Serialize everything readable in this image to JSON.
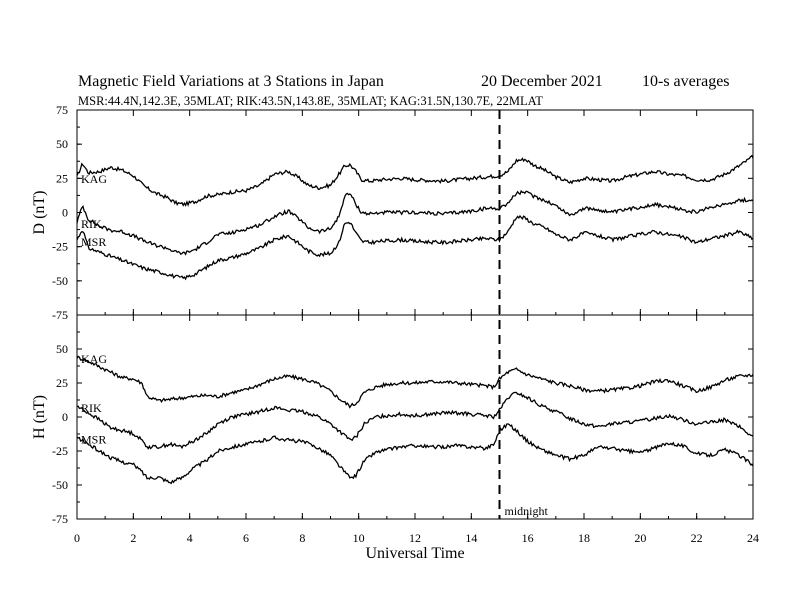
{
  "header": {
    "title": "Magnetic Field Variations at 3 Stations in Japan",
    "date": "20 December 2021",
    "averaging": "10-s averages",
    "stations_line": "MSR:44.4N,142.3E, 35MLAT;  RIK:43.5N,143.8E, 35MLAT;  KAG:31.5N,130.7E, 22MLAT"
  },
  "chart_data": [
    {
      "type": "line",
      "panel": "D",
      "ylabel": "D (nT)",
      "ylim": [
        -75,
        75
      ],
      "yticks": [
        -75,
        -50,
        -25,
        0,
        25,
        50,
        75
      ],
      "xlim": [
        0,
        24
      ],
      "series": [
        {
          "name": "KAG",
          "x": [
            0,
            0.2,
            0.4,
            0.8,
            1.2,
            1.6,
            2.0,
            2.4,
            2.8,
            3.2,
            3.5,
            3.8,
            4.2,
            4.6,
            5.0,
            5.5,
            6.0,
            6.5,
            7.0,
            7.5,
            7.9,
            8.2,
            8.6,
            9.0,
            9.3,
            9.5,
            9.7,
            9.9,
            10.1,
            10.4,
            10.8,
            11.5,
            12,
            13,
            14,
            14.5,
            15.0,
            15.3,
            15.6,
            15.9,
            16.2,
            16.6,
            17.0,
            17.5,
            18.0,
            18.5,
            19.0,
            19.5,
            20.0,
            20.5,
            21,
            21.5,
            22.0,
            22.5,
            23.0,
            23.5,
            24.0
          ],
          "y": [
            26,
            36,
            29,
            30,
            33,
            31,
            27,
            19,
            14,
            11,
            7,
            6,
            8,
            12,
            13,
            15,
            16,
            20,
            28,
            30,
            25,
            20,
            18,
            20,
            28,
            34,
            35,
            30,
            24,
            23,
            24,
            25,
            24,
            23,
            25,
            26,
            27,
            30,
            38,
            39,
            35,
            31,
            26,
            22,
            25,
            24,
            23,
            26,
            28,
            30,
            28,
            27,
            24,
            24,
            28,
            34,
            41
          ]
        },
        {
          "name": "RIK",
          "x": [
            0,
            0.2,
            0.4,
            0.8,
            1.2,
            1.6,
            2.0,
            2.4,
            2.8,
            3.2,
            3.5,
            3.8,
            4.2,
            4.6,
            5.0,
            5.5,
            6.0,
            6.5,
            7.0,
            7.5,
            7.9,
            8.2,
            8.6,
            9.0,
            9.3,
            9.5,
            9.7,
            9.9,
            10.1,
            10.4,
            10.8,
            11.5,
            12,
            13,
            14,
            14.5,
            15.0,
            15.3,
            15.6,
            15.9,
            16.2,
            16.6,
            17.0,
            17.5,
            18.0,
            18.5,
            19.0,
            19.5,
            20.0,
            20.5,
            21,
            21.5,
            22.0,
            22.5,
            23.0,
            23.5,
            24.0
          ],
          "y": [
            -7,
            5,
            -5,
            -10,
            -13,
            -14,
            -17,
            -21,
            -24,
            -26,
            -29,
            -30,
            -27,
            -22,
            -16,
            -15,
            -12,
            -9,
            -3,
            1,
            -5,
            -11,
            -14,
            -12,
            -3,
            12,
            14,
            6,
            0,
            -1,
            0,
            0,
            0,
            -1,
            1,
            3,
            3,
            7,
            14,
            15,
            12,
            9,
            5,
            -2,
            3,
            2,
            0,
            2,
            4,
            6,
            4,
            2,
            0,
            4,
            6,
            9,
            9
          ]
        },
        {
          "name": "MSR",
          "x": [
            0,
            0.2,
            0.4,
            0.8,
            1.2,
            1.6,
            2.0,
            2.4,
            2.8,
            3.2,
            3.5,
            3.8,
            4.2,
            4.6,
            5.0,
            5.5,
            6.0,
            6.5,
            7.0,
            7.5,
            7.9,
            8.2,
            8.6,
            9.0,
            9.3,
            9.5,
            9.7,
            9.9,
            10.1,
            10.4,
            10.8,
            11.5,
            12,
            13,
            14,
            14.5,
            15.0,
            15.3,
            15.6,
            15.9,
            16.2,
            16.6,
            17.0,
            17.5,
            18.0,
            18.5,
            19.0,
            19.5,
            20.0,
            20.5,
            21,
            21.5,
            22.0,
            22.5,
            23.0,
            23.5,
            24.0
          ],
          "y": [
            -20,
            -12,
            -26,
            -29,
            -32,
            -35,
            -38,
            -41,
            -43,
            -45,
            -47,
            -48,
            -45,
            -40,
            -35,
            -33,
            -30,
            -26,
            -20,
            -17,
            -23,
            -28,
            -31,
            -30,
            -22,
            -8,
            -7,
            -15,
            -21,
            -22,
            -21,
            -20,
            -21,
            -22,
            -20,
            -19,
            -20,
            -14,
            -3,
            -4,
            -8,
            -11,
            -16,
            -20,
            -15,
            -17,
            -20,
            -18,
            -16,
            -14,
            -16,
            -18,
            -22,
            -19,
            -17,
            -14,
            -19
          ]
        }
      ]
    },
    {
      "type": "line",
      "panel": "H",
      "ylabel": "H (nT)",
      "ylim": [
        -75,
        75
      ],
      "yticks": [
        -75,
        -50,
        -25,
        0,
        25,
        50
      ],
      "xlim": [
        0,
        24
      ],
      "xticks": [
        0,
        2,
        4,
        6,
        8,
        10,
        12,
        14,
        16,
        18,
        20,
        22,
        24
      ],
      "xlabel": "Universal Time",
      "series": [
        {
          "name": "KAG",
          "x": [
            0,
            0.4,
            0.8,
            1.2,
            1.6,
            2.0,
            2.3,
            2.5,
            2.9,
            3.3,
            3.7,
            4.1,
            4.6,
            5.0,
            5.5,
            6.0,
            6.5,
            7.0,
            7.5,
            8.0,
            8.5,
            9.0,
            9.4,
            9.7,
            9.9,
            10.2,
            10.6,
            11.0,
            11.5,
            12,
            12.5,
            13,
            13.5,
            14,
            14.5,
            14.8,
            15.0,
            15.3,
            15.6,
            16.0,
            16.5,
            17.0,
            17.5,
            18.0,
            18.5,
            19,
            19.5,
            20,
            20.5,
            21,
            21.5,
            22,
            22.5,
            23,
            23.5,
            24
          ],
          "y": [
            44,
            41,
            37,
            33,
            29,
            28,
            25,
            15,
            12,
            13,
            14,
            15,
            16,
            15,
            18,
            20,
            24,
            28,
            30,
            28,
            25,
            19,
            12,
            8,
            10,
            18,
            22,
            24,
            25,
            25,
            26,
            26,
            25,
            24,
            23,
            22,
            28,
            33,
            35,
            31,
            28,
            25,
            23,
            20,
            19,
            20,
            21,
            23,
            26,
            27,
            23,
            19,
            22,
            27,
            30,
            31
          ]
        },
        {
          "name": "RIK",
          "x": [
            0,
            0.4,
            0.8,
            1.2,
            1.6,
            2.0,
            2.3,
            2.5,
            2.9,
            3.3,
            3.7,
            4.1,
            4.6,
            5.0,
            5.5,
            6.0,
            6.5,
            7.0,
            7.5,
            8.0,
            8.5,
            9.0,
            9.4,
            9.7,
            9.9,
            10.2,
            10.6,
            11.0,
            11.5,
            12,
            12.5,
            13,
            13.5,
            14,
            14.5,
            14.8,
            15.0,
            15.3,
            15.6,
            16.0,
            16.5,
            17.0,
            17.5,
            18.0,
            18.5,
            19,
            19.5,
            20,
            20.5,
            21,
            21.5,
            22,
            22.5,
            23,
            23.5,
            24
          ],
          "y": [
            8,
            3,
            -2,
            -8,
            -10,
            -12,
            -17,
            -22,
            -22,
            -20,
            -22,
            -18,
            -12,
            -5,
            0,
            2,
            4,
            7,
            5,
            4,
            1,
            -5,
            -12,
            -17,
            -15,
            -5,
            0,
            1,
            2,
            1,
            2,
            3,
            3,
            2,
            1,
            0,
            5,
            14,
            18,
            14,
            8,
            4,
            -1,
            -5,
            -7,
            -5,
            -4,
            -3,
            -1,
            1,
            -2,
            -5,
            -4,
            -2,
            -7,
            -15
          ]
        },
        {
          "name": "MSR",
          "x": [
            0,
            0.4,
            0.8,
            1.2,
            1.6,
            2.0,
            2.3,
            2.5,
            2.9,
            3.3,
            3.7,
            4.1,
            4.6,
            5.0,
            5.5,
            6.0,
            6.5,
            7.0,
            7.5,
            8.0,
            8.5,
            9.0,
            9.4,
            9.7,
            9.9,
            10.2,
            10.6,
            11.0,
            11.5,
            12,
            12.5,
            13,
            13.5,
            14,
            14.5,
            14.8,
            15.0,
            15.3,
            15.6,
            16.0,
            16.5,
            17.0,
            17.5,
            18.0,
            18.5,
            19,
            19.5,
            20,
            20.5,
            21,
            21.5,
            22,
            22.5,
            23,
            23.5,
            24
          ],
          "y": [
            -15,
            -20,
            -25,
            -30,
            -33,
            -35,
            -40,
            -45,
            -44,
            -48,
            -45,
            -38,
            -32,
            -25,
            -22,
            -20,
            -18,
            -15,
            -17,
            -18,
            -22,
            -28,
            -38,
            -45,
            -43,
            -32,
            -26,
            -24,
            -22,
            -21,
            -22,
            -22,
            -21,
            -22,
            -23,
            -20,
            -10,
            -5,
            -10,
            -18,
            -24,
            -28,
            -31,
            -28,
            -22,
            -23,
            -25,
            -26,
            -23,
            -19,
            -21,
            -27,
            -28,
            -24,
            -28,
            -35
          ]
        }
      ]
    }
  ],
  "annotations": {
    "midnight_x": 15,
    "midnight_label": "midnight"
  }
}
